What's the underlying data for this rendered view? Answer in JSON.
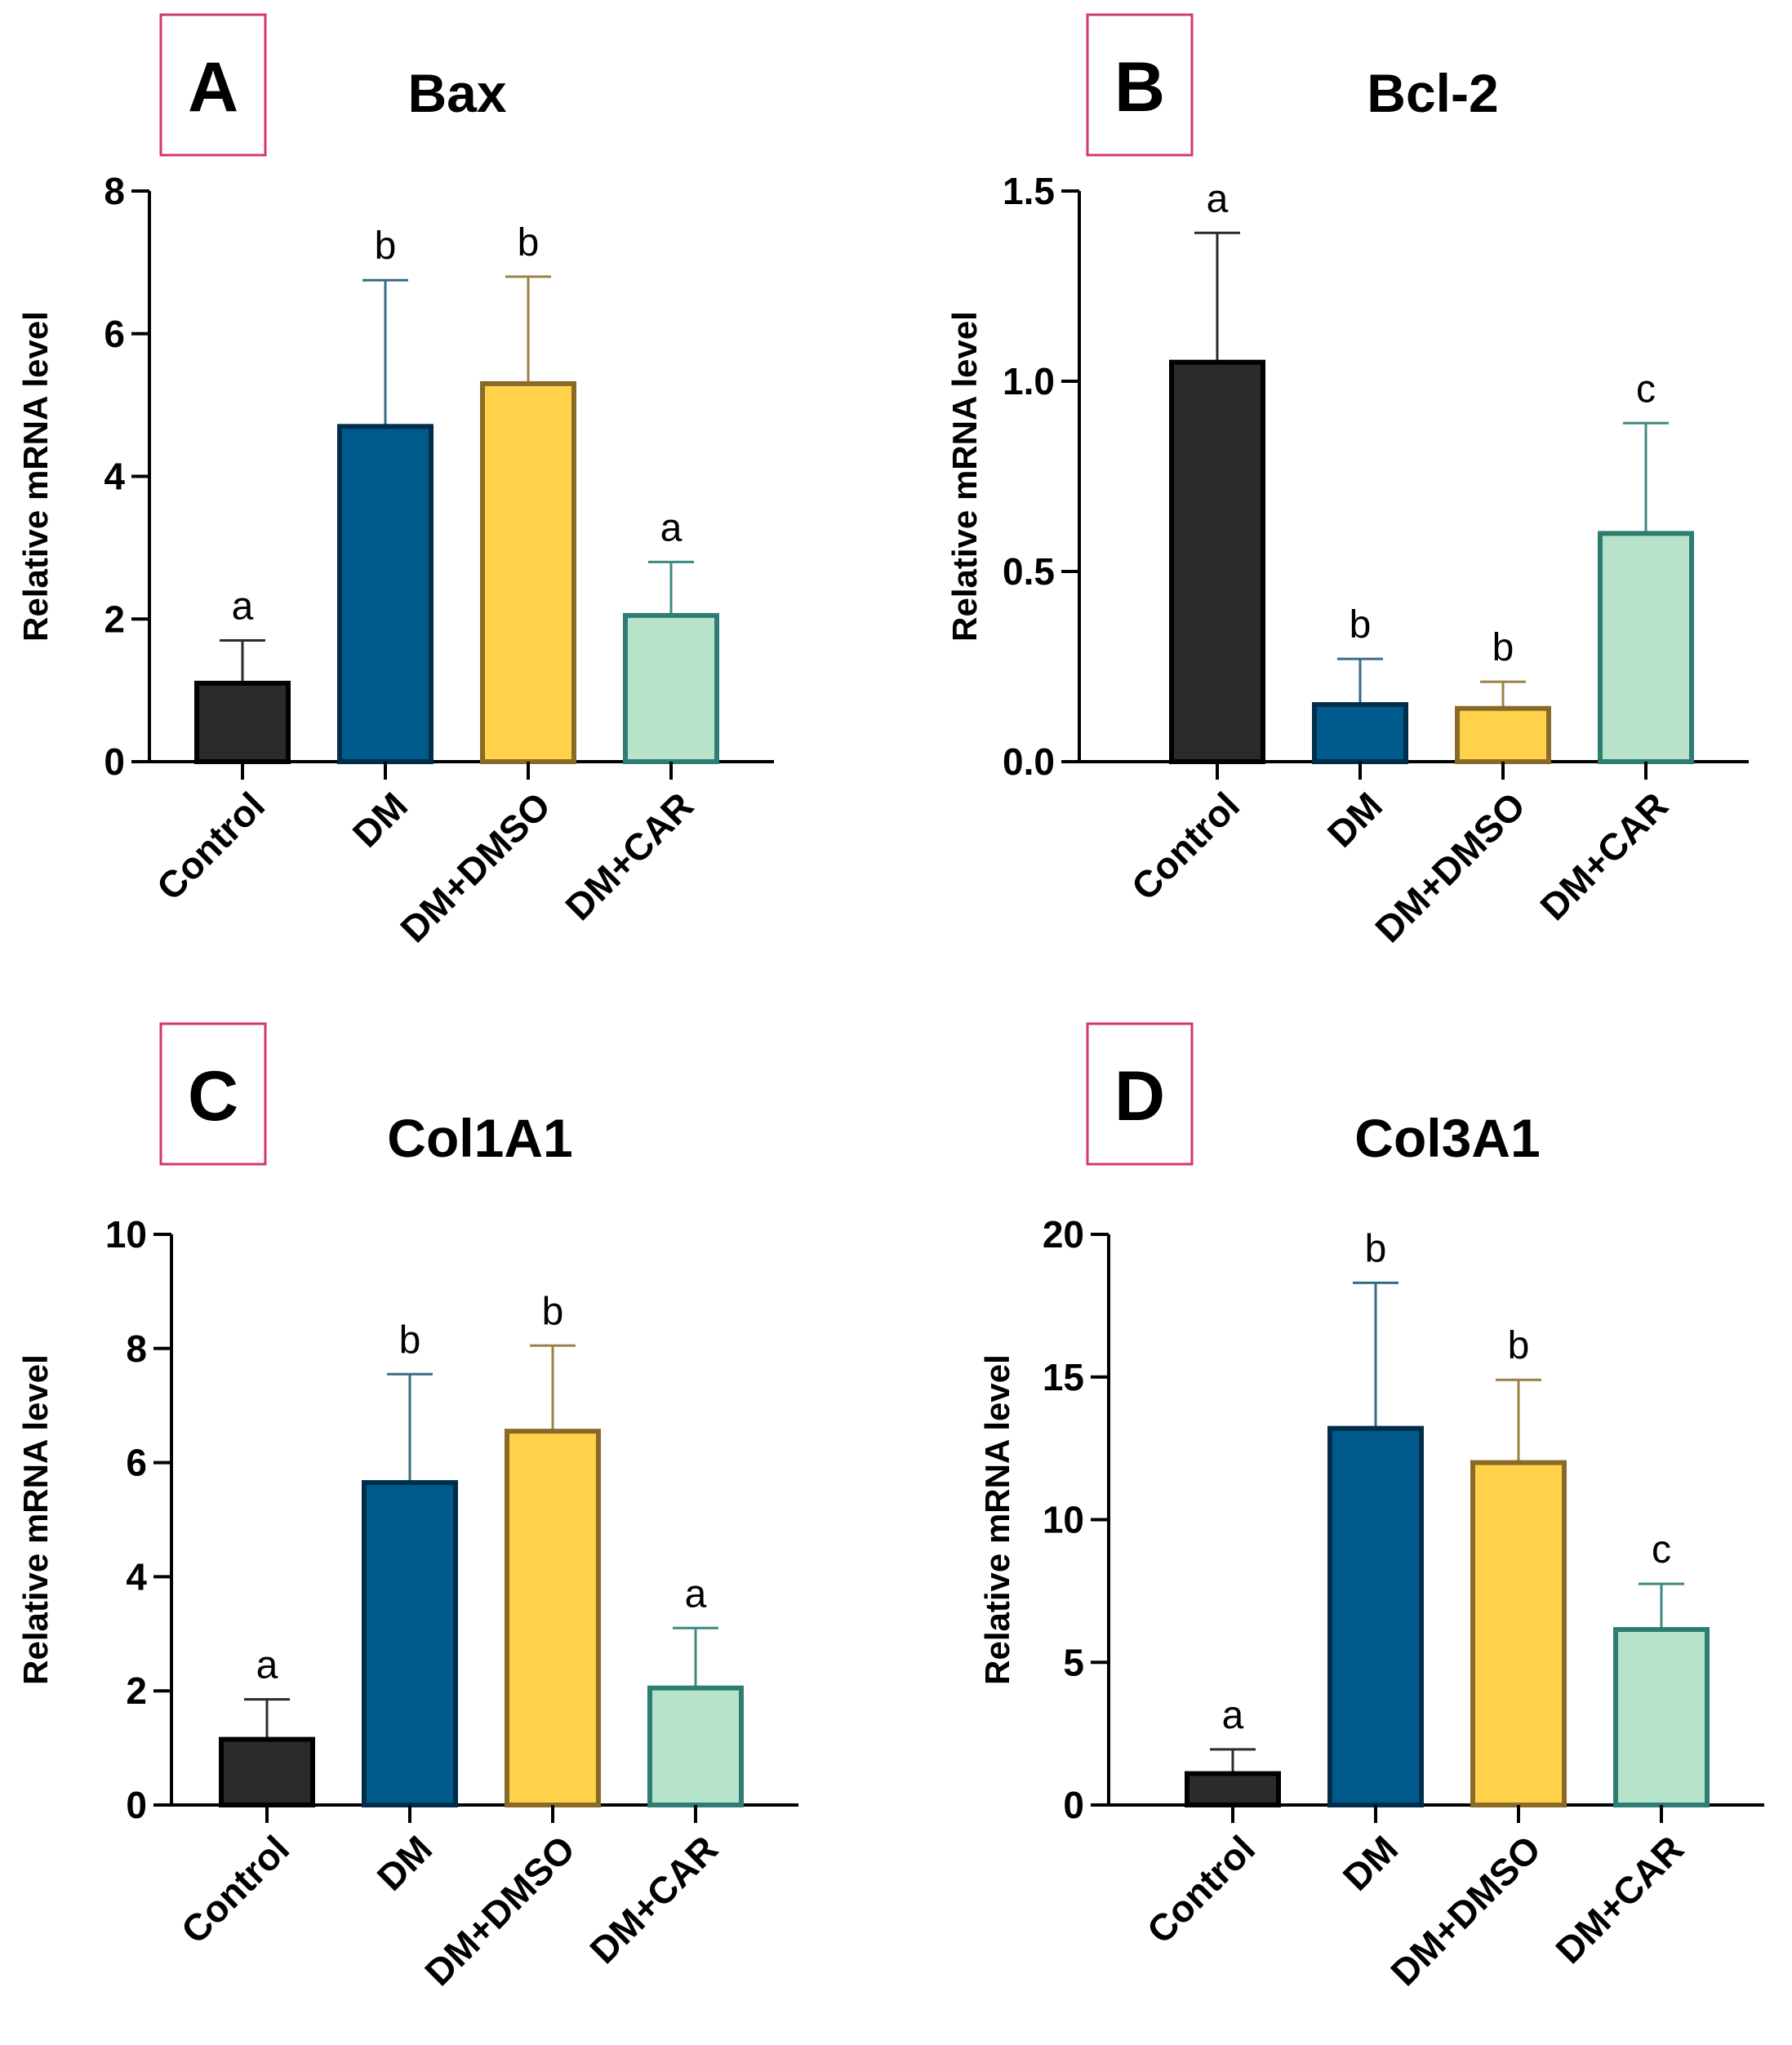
{
  "chart_data": [
    {
      "panel": "A",
      "type": "bar",
      "title": "Bax",
      "ylabel": "Relative mRNA level",
      "xlabel": "",
      "ylim": [
        0,
        8
      ],
      "yticks": [
        0,
        2,
        4,
        6,
        8
      ],
      "ytick_labels": [
        "0",
        "2",
        "4",
        "6",
        "8"
      ],
      "categories": [
        "Control",
        "DM",
        "DM+DMSO",
        "DM+CAR"
      ],
      "values": [
        1.1,
        4.7,
        5.3,
        2.05
      ],
      "errors": [
        0.6,
        2.05,
        1.5,
        0.75
      ],
      "significance": [
        "a",
        "b",
        "b",
        "a"
      ]
    },
    {
      "panel": "B",
      "type": "bar",
      "title": "Bcl-2",
      "ylabel": "Relative mRNA level",
      "xlabel": "",
      "ylim": [
        0,
        1.5
      ],
      "yticks": [
        0,
        0.5,
        1.0,
        1.5
      ],
      "ytick_labels": [
        "0.0",
        "0.5",
        "1.0",
        "1.5"
      ],
      "categories": [
        "Control",
        "DM",
        "DM+DMSO",
        "DM+CAR"
      ],
      "values": [
        1.05,
        0.15,
        0.14,
        0.6
      ],
      "errors": [
        0.34,
        0.12,
        0.07,
        0.29
      ],
      "significance": [
        "a",
        "b",
        "b",
        "c"
      ]
    },
    {
      "panel": "C",
      "type": "bar",
      "title": "Col1A1",
      "ylabel": "Relative mRNA level",
      "xlabel": "",
      "ylim": [
        0,
        10
      ],
      "yticks": [
        0,
        2,
        4,
        6,
        8,
        10
      ],
      "ytick_labels": [
        "0",
        "2",
        "4",
        "6",
        "8",
        "10"
      ],
      "categories": [
        "Control",
        "DM",
        "DM+DMSO",
        "DM+CAR"
      ],
      "values": [
        1.15,
        5.65,
        6.55,
        2.05
      ],
      "errors": [
        0.7,
        1.9,
        1.5,
        1.05
      ],
      "significance": [
        "a",
        "b",
        "b",
        "a"
      ]
    },
    {
      "panel": "D",
      "type": "bar",
      "title": "Col3A1",
      "ylabel": "Relative mRNA level",
      "xlabel": "",
      "ylim": [
        0,
        20
      ],
      "yticks": [
        0,
        5,
        10,
        15,
        20
      ],
      "ytick_labels": [
        "0",
        "5",
        "10",
        "15",
        "20"
      ],
      "categories": [
        "Control",
        "DM",
        "DM+DMSO",
        "DM+CAR"
      ],
      "values": [
        1.1,
        13.2,
        12.0,
        6.15
      ],
      "errors": [
        0.85,
        5.1,
        2.9,
        1.6
      ],
      "significance": [
        "a",
        "b",
        "b",
        "c"
      ]
    }
  ],
  "colors": {
    "bar_fills": [
      "#2b2b2b",
      "#005a8c",
      "#ffd24a",
      "#b8e3cb"
    ],
    "bar_strokes": [
      "#000000",
      "#002d4a",
      "#8a6a28",
      "#2e7d72"
    ],
    "error_bars": [
      "#2b2b2b",
      "#3a6b84",
      "#9c8048",
      "#3d8a7f"
    ],
    "panel_box": "#d4376a",
    "axis": "#000000"
  }
}
